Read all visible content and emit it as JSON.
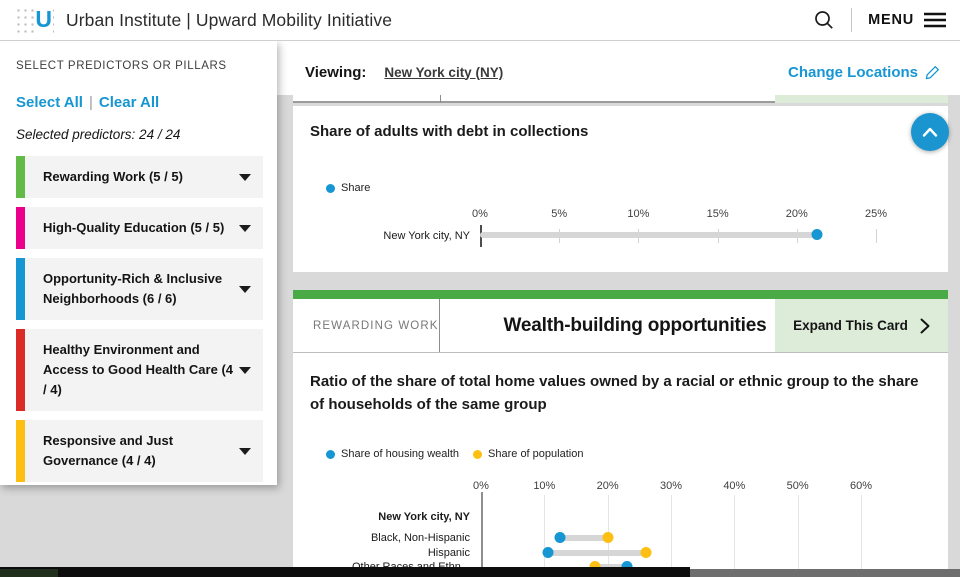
{
  "colors": {
    "accent_blue": "#1696d2",
    "card_green": "#4aaa46",
    "light_green": "#ddebd9",
    "dot_blue": "#1696d2",
    "dot_yellow": "#fdbf11",
    "track_gray": "#d6d6d6"
  },
  "header": {
    "logo_letter": "U",
    "title": "Urban Institute | Upward Mobility Initiative",
    "menu_label": "MENU"
  },
  "sidebar": {
    "heading": "SELECT PREDICTORS OR PILLARS",
    "select_all_label": "Select All",
    "clear_all_label": "Clear All",
    "selected_summary": "Selected predictors: 24 / 24",
    "pillars": [
      {
        "label": "Rewarding Work (5 / 5)",
        "color": "#62bb46"
      },
      {
        "label": "High-Quality Education (5 / 5)",
        "color": "#ec008b"
      },
      {
        "label": "Opportunity-Rich & Inclusive Neighborhoods (6 / 6)",
        "color": "#1696d2"
      },
      {
        "label": "Healthy Environment and Access to Good Health Care (4 / 4)",
        "color": "#db2b27"
      },
      {
        "label": "Responsive and Just Governance (4 / 4)",
        "color": "#fdbf11"
      }
    ]
  },
  "viewing_bar": {
    "label": "Viewing:",
    "location": "New York city (NY)",
    "change_locations_label": "Change Locations"
  },
  "cards": {
    "wealth_card": {
      "category": "REWARDING WORK",
      "title": "Wealth-building opportunities",
      "expand_label": "Expand This Card"
    }
  },
  "chart_data": [
    {
      "type": "dot",
      "orientation": "horizontal",
      "title": "Share of adults with debt in collections",
      "legend": [
        {
          "label": "Share",
          "color": "#1696d2"
        }
      ],
      "legend_position": "top-left",
      "x_ticks": [
        "0%",
        "5%",
        "10%",
        "15%",
        "20%",
        "25%"
      ],
      "xmax": 25,
      "grid": "ticks-only",
      "rows": [
        {
          "label": "New York city, NY",
          "share": 21.3
        }
      ]
    },
    {
      "type": "dot",
      "orientation": "horizontal",
      "title": "Ratio of the share of total home values owned by a racial or ethnic group to the share of households of the same group",
      "legend": [
        {
          "label": "Share of housing wealth",
          "color": "#1696d2"
        },
        {
          "label": "Share of population",
          "color": "#fdbf11"
        }
      ],
      "legend_position": "top-left",
      "x_ticks": [
        "0%",
        "10%",
        "20%",
        "30%",
        "40%",
        "50%",
        "60%"
      ],
      "xmax": 60,
      "grid": "vertical-gridlines",
      "rows": [
        {
          "label": "New York city, NY",
          "group_header": true
        },
        {
          "label": "Black, Non-Hispanic",
          "housing_wealth": 12.5,
          "population": 20
        },
        {
          "label": "Hispanic",
          "housing_wealth": 10.5,
          "population": 26
        },
        {
          "label": "Other Races and Ethn...",
          "housing_wealth": 23,
          "population": 18
        }
      ]
    }
  ]
}
